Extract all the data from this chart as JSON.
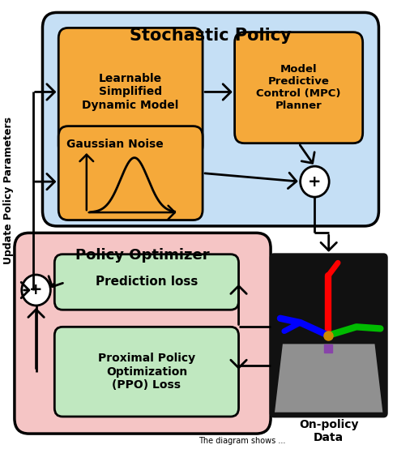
{
  "title": "Stochastic Policy",
  "title2": "Policy Optimizer",
  "box1_label": "Learnable\nSimplified\nDynamic Model",
  "box2_label": "Model\nPredictive\nControl (MPC)\nPlanner",
  "box3_label": "Gaussian Noise",
  "box4_label": "Prediction loss",
  "box5_label": "Proximal Policy\nOptimization\n(PPO) Loss",
  "side_label": "Update Policy Parameters",
  "bottom_label": "On-policy\nData",
  "outer_box1_color": "#c5dff5",
  "outer_box2_color": "#f5c5c5",
  "inner_box_orange": "#f5a93a",
  "inner_box_green": "#c0e8c0",
  "text_color": "#000000",
  "background_color": "#ffffff"
}
